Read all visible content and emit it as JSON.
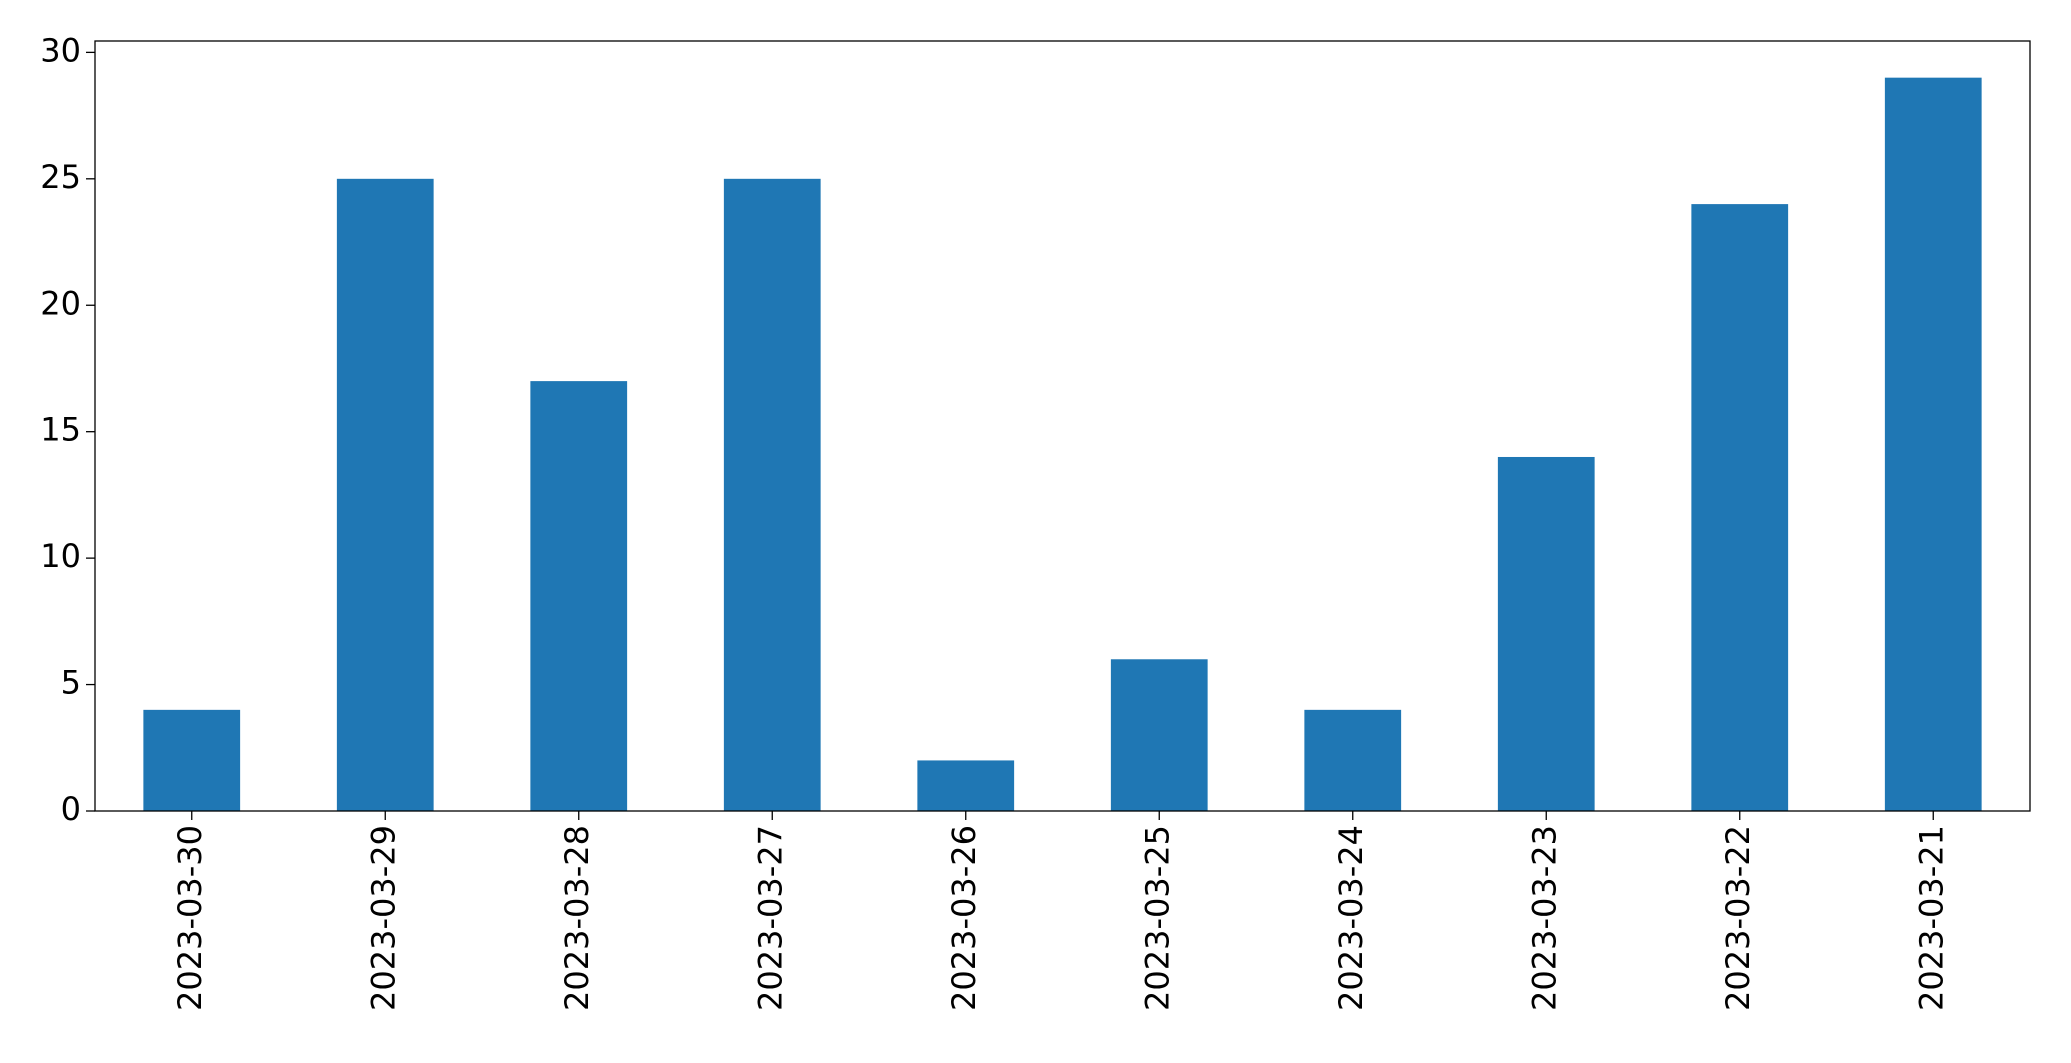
{
  "chart_data": {
    "type": "bar",
    "categories": [
      "2023-03-30",
      "2023-03-29",
      "2023-03-28",
      "2023-03-27",
      "2023-03-26",
      "2023-03-25",
      "2023-03-24",
      "2023-03-23",
      "2023-03-22",
      "2023-03-21"
    ],
    "values": [
      4,
      25,
      17,
      25,
      2,
      6,
      4,
      14,
      24,
      29
    ],
    "color": "#1f77b4",
    "ylim": [
      0,
      30.45
    ],
    "yticks": [
      0,
      5,
      10,
      15,
      20,
      25,
      30
    ],
    "grid": false
  }
}
